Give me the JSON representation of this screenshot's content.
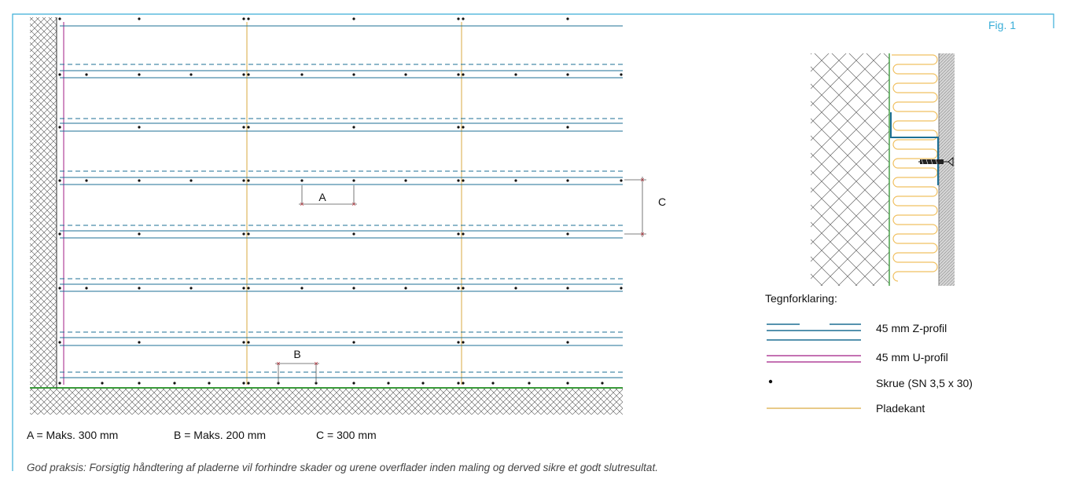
{
  "figure_label": "Fig. 1",
  "dimension_labels": {
    "a": "A",
    "b": "B",
    "c": "C"
  },
  "dimensions_line": {
    "a": "A = Maks. 300 mm",
    "b": "B = Maks. 200 mm",
    "c": "C = 300 mm"
  },
  "legend": {
    "title": "Tegnforklaring:",
    "items": [
      {
        "label": "45 mm Z-profil",
        "symbol": "z-profile",
        "color": "#1d6f94"
      },
      {
        "label": "45 mm U-profil",
        "symbol": "u-profile",
        "color": "#b0449a"
      },
      {
        "label": "Skrue (SN 3,5 x 30)",
        "symbol": "screw-dot",
        "color": "#111111"
      },
      {
        "label": "Pladekant",
        "symbol": "board-edge",
        "color": "#e0b860"
      }
    ]
  },
  "footer_note": "God praksis: Forsigtig håndtering af pladerne vil forhindre skader og urene overflader inden maling og derved sikre et godt slutresultat.",
  "colors": {
    "frame": "#3aaed8",
    "profile": "#1d6f94",
    "u_profile": "#b0449a",
    "board_edge": "#e0b860",
    "floor_line": "#3a9a3a",
    "dimension": "#c0303a",
    "insulation": "#f0c060"
  }
}
